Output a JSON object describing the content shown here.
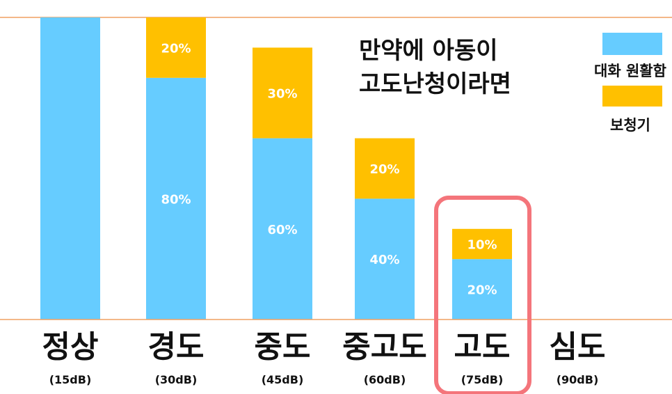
{
  "chart_data": {
    "type": "bar",
    "stacked": true,
    "ylim": [
      0,
      100
    ],
    "categories": [
      {
        "label": "정상",
        "sub": "(15dB)"
      },
      {
        "label": "경도",
        "sub": "(30dB)"
      },
      {
        "label": "중도",
        "sub": "(45dB)"
      },
      {
        "label": "중고도",
        "sub": "(60dB)"
      },
      {
        "label": "고도",
        "sub": "(75dB)"
      },
      {
        "label": "심도",
        "sub": "(90dB)"
      }
    ],
    "series": [
      {
        "name": "대화 원활함",
        "color": "#66CCFF",
        "values": [
          100,
          80,
          60,
          40,
          20,
          0
        ],
        "labels": [
          "",
          "80%",
          "60%",
          "40%",
          "20%",
          ""
        ]
      },
      {
        "name": "보청기",
        "color": "#FFC000",
        "values": [
          0,
          20,
          30,
          20,
          10,
          0
        ],
        "labels": [
          "",
          "20%",
          "30%",
          "20%",
          "10%",
          ""
        ]
      }
    ],
    "title_lines": [
      "만약에 아동이",
      "고도난청이라면"
    ],
    "highlight_category": 4,
    "highlight_color": "#F4757B",
    "axis_line_color": "#F0A060"
  }
}
